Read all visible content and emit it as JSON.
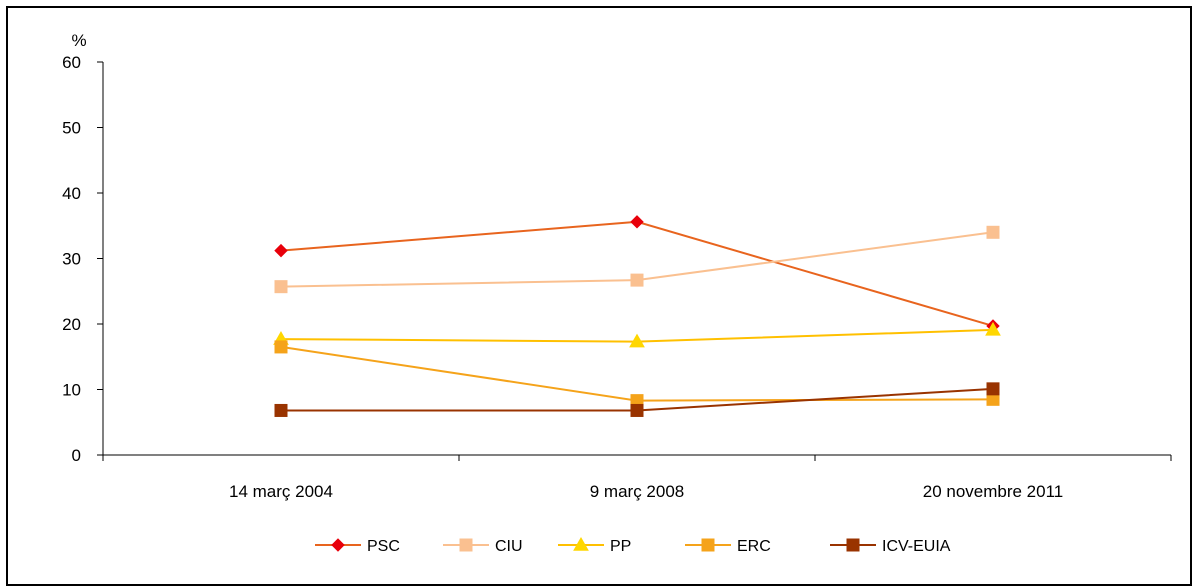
{
  "chart_data": {
    "type": "line",
    "title": "",
    "ylabel": "%",
    "xlabel": "",
    "ylim": [
      0,
      60
    ],
    "yticks": [
      0,
      10,
      20,
      30,
      40,
      50,
      60
    ],
    "ytick_labels": [
      "0",
      "10",
      "20",
      "30",
      "40",
      "50",
      "60"
    ],
    "categories": [
      "14 març 2004",
      "9 març 2008",
      "20 novembre 2011"
    ],
    "grid": false,
    "legend_position": "bottom",
    "series": [
      {
        "name": "PSC",
        "values": [
          31.2,
          35.6,
          19.7
        ],
        "color": "#E8641E",
        "marker_color": "#E8000B",
        "marker": "diamond"
      },
      {
        "name": "CIU",
        "values": [
          25.7,
          26.7,
          34.0
        ],
        "color": "#FAC090",
        "marker_color": "#FAC090",
        "marker": "square"
      },
      {
        "name": "PP",
        "values": [
          17.7,
          17.3,
          19.1
        ],
        "color": "#FFC000",
        "marker_color": "#FFD700",
        "marker": "triangle"
      },
      {
        "name": "ERC",
        "values": [
          16.5,
          8.3,
          8.5
        ],
        "color": "#F5A31A",
        "marker_color": "#F5A31A",
        "marker": "square"
      },
      {
        "name": "ICV-EUIA",
        "values": [
          6.8,
          6.8,
          10.1
        ],
        "color": "#993300",
        "marker_color": "#993300",
        "marker": "square"
      }
    ]
  }
}
